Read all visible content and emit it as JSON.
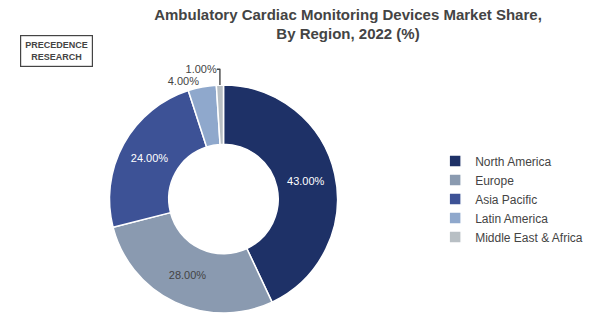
{
  "chart_data": {
    "type": "pie",
    "title": "Ambulatory Cardiac Monitoring Devices Market Share,\nBy Region, 2022 (%)",
    "categories": [
      "North America",
      "Europe",
      "Asia Pacific",
      "Latin America",
      "Middle East & Africa"
    ],
    "values": [
      43,
      28,
      24,
      4,
      1
    ],
    "value_labels": [
      "43.00%",
      "28.00%",
      "24.00%",
      "4.00%",
      "1.00%"
    ],
    "colors": [
      "#1e3167",
      "#8a9ab0",
      "#3d5296",
      "#8fa8cc",
      "#b8bfc4"
    ],
    "data_labels": true,
    "legend": "right",
    "annotations": [
      "PRECEDENCE\nRESEARCH"
    ]
  }
}
